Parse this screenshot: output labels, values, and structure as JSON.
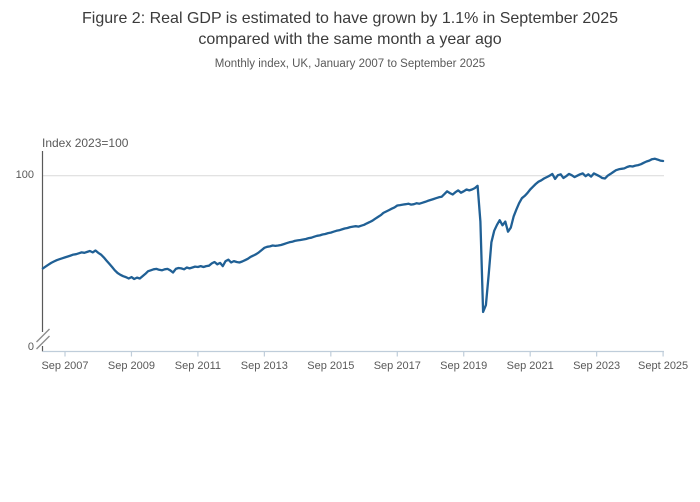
{
  "figure": {
    "title_lines": [
      "Figure 2: Real GDP is estimated to have grown by 1.1% in September 2025",
      "compared with the same month a year ago"
    ],
    "subtitle": "Monthly index, UK, January 2007 to September 2025"
  },
  "chart_data": {
    "type": "line",
    "title": "Figure 2: Real GDP is estimated to have grown by 1.1% in September 2025 compared with the same month a year ago",
    "subtitle": "Monthly index, UK, January 2007 to September 2025",
    "y_axis_title": "Index 2023=100",
    "y_ticks": [
      "100",
      "0"
    ],
    "y_axis_break": true,
    "ylim_display": [
      0,
      110
    ],
    "grid": "horizontal gridline at 100 only",
    "legend": "none",
    "x_start": "2007-01",
    "x_end": "2025-09",
    "frequency": "monthly",
    "x_tick_labels": [
      "Sep 2007",
      "Sep 2009",
      "Sep 2011",
      "Sep 2013",
      "Sep 2015",
      "Sep 2017",
      "Sep 2019",
      "Sep 2021",
      "Sep 2023",
      "Sept 2025"
    ],
    "line_color": "#206095",
    "series": [
      {
        "name": "Monthly real GDP index, UK (2023=100)",
        "values": [
          79.8,
          80.2,
          80.6,
          81.0,
          81.3,
          81.6,
          81.8,
          82.0,
          82.2,
          82.4,
          82.6,
          82.8,
          82.9,
          83.1,
          83.3,
          83.2,
          83.4,
          83.6,
          83.3,
          83.7,
          83.2,
          82.8,
          82.2,
          81.5,
          80.8,
          80.1,
          79.4,
          78.8,
          78.4,
          78.1,
          77.9,
          77.6,
          77.9,
          77.5,
          77.8,
          77.6,
          78.1,
          78.6,
          79.2,
          79.4,
          79.6,
          79.7,
          79.5,
          79.4,
          79.6,
          79.7,
          79.4,
          78.9,
          79.7,
          79.9,
          79.8,
          79.6,
          80.0,
          79.8,
          80.0,
          80.2,
          80.1,
          80.3,
          80.1,
          80.3,
          80.4,
          80.9,
          81.2,
          80.7,
          81.0,
          80.3,
          81.4,
          81.7,
          81.1,
          81.4,
          81.2,
          81.1,
          81.3,
          81.6,
          81.9,
          82.3,
          82.6,
          82.9,
          83.3,
          83.8,
          84.3,
          84.5,
          84.6,
          84.8,
          84.7,
          84.8,
          84.9,
          85.1,
          85.3,
          85.5,
          85.6,
          85.8,
          85.9,
          86.0,
          86.1,
          86.2,
          86.4,
          86.5,
          86.7,
          86.9,
          87.0,
          87.2,
          87.3,
          87.5,
          87.6,
          87.8,
          88.0,
          88.1,
          88.3,
          88.5,
          88.6,
          88.8,
          88.9,
          89.0,
          88.9,
          89.1,
          89.3,
          89.6,
          89.9,
          90.2,
          90.6,
          91.0,
          91.4,
          91.9,
          92.2,
          92.5,
          92.8,
          93.1,
          93.5,
          93.6,
          93.7,
          93.8,
          93.9,
          93.7,
          93.8,
          94.0,
          93.9,
          94.1,
          94.3,
          94.5,
          94.7,
          94.9,
          95.1,
          95.3,
          95.4,
          96.0,
          96.6,
          96.2,
          95.9,
          96.4,
          96.8,
          96.3,
          96.6,
          97.0,
          96.8,
          97.0,
          97.3,
          97.8,
          90.0,
          70.3,
          71.8,
          78.5,
          85.5,
          88.0,
          89.3,
          90.3,
          89.2,
          90.0,
          87.8,
          88.7,
          91.1,
          92.6,
          94.0,
          95.1,
          95.6,
          96.2,
          97.0,
          97.6,
          98.2,
          98.7,
          99.0,
          99.4,
          99.7,
          100.0,
          100.4,
          99.3,
          100.1,
          100.3,
          99.5,
          99.9,
          100.4,
          100.1,
          99.7,
          100.0,
          100.3,
          100.5,
          99.9,
          100.3,
          99.8,
          100.5,
          100.2,
          99.9,
          99.5,
          99.4,
          100.0,
          100.4,
          100.8,
          101.2,
          101.4,
          101.5,
          101.6,
          101.9,
          102.1,
          102.0,
          102.2,
          102.3,
          102.5,
          102.8,
          103.1,
          103.3,
          103.6,
          103.7,
          103.5,
          103.3,
          103.2
        ]
      }
    ]
  },
  "colors": {
    "line": "#206095",
    "gridline": "#d9d9d9",
    "y_axis": "#595959",
    "x_axis": "#bfcdda",
    "text_title": "#3b3b3b",
    "text_labels": "#595959"
  }
}
